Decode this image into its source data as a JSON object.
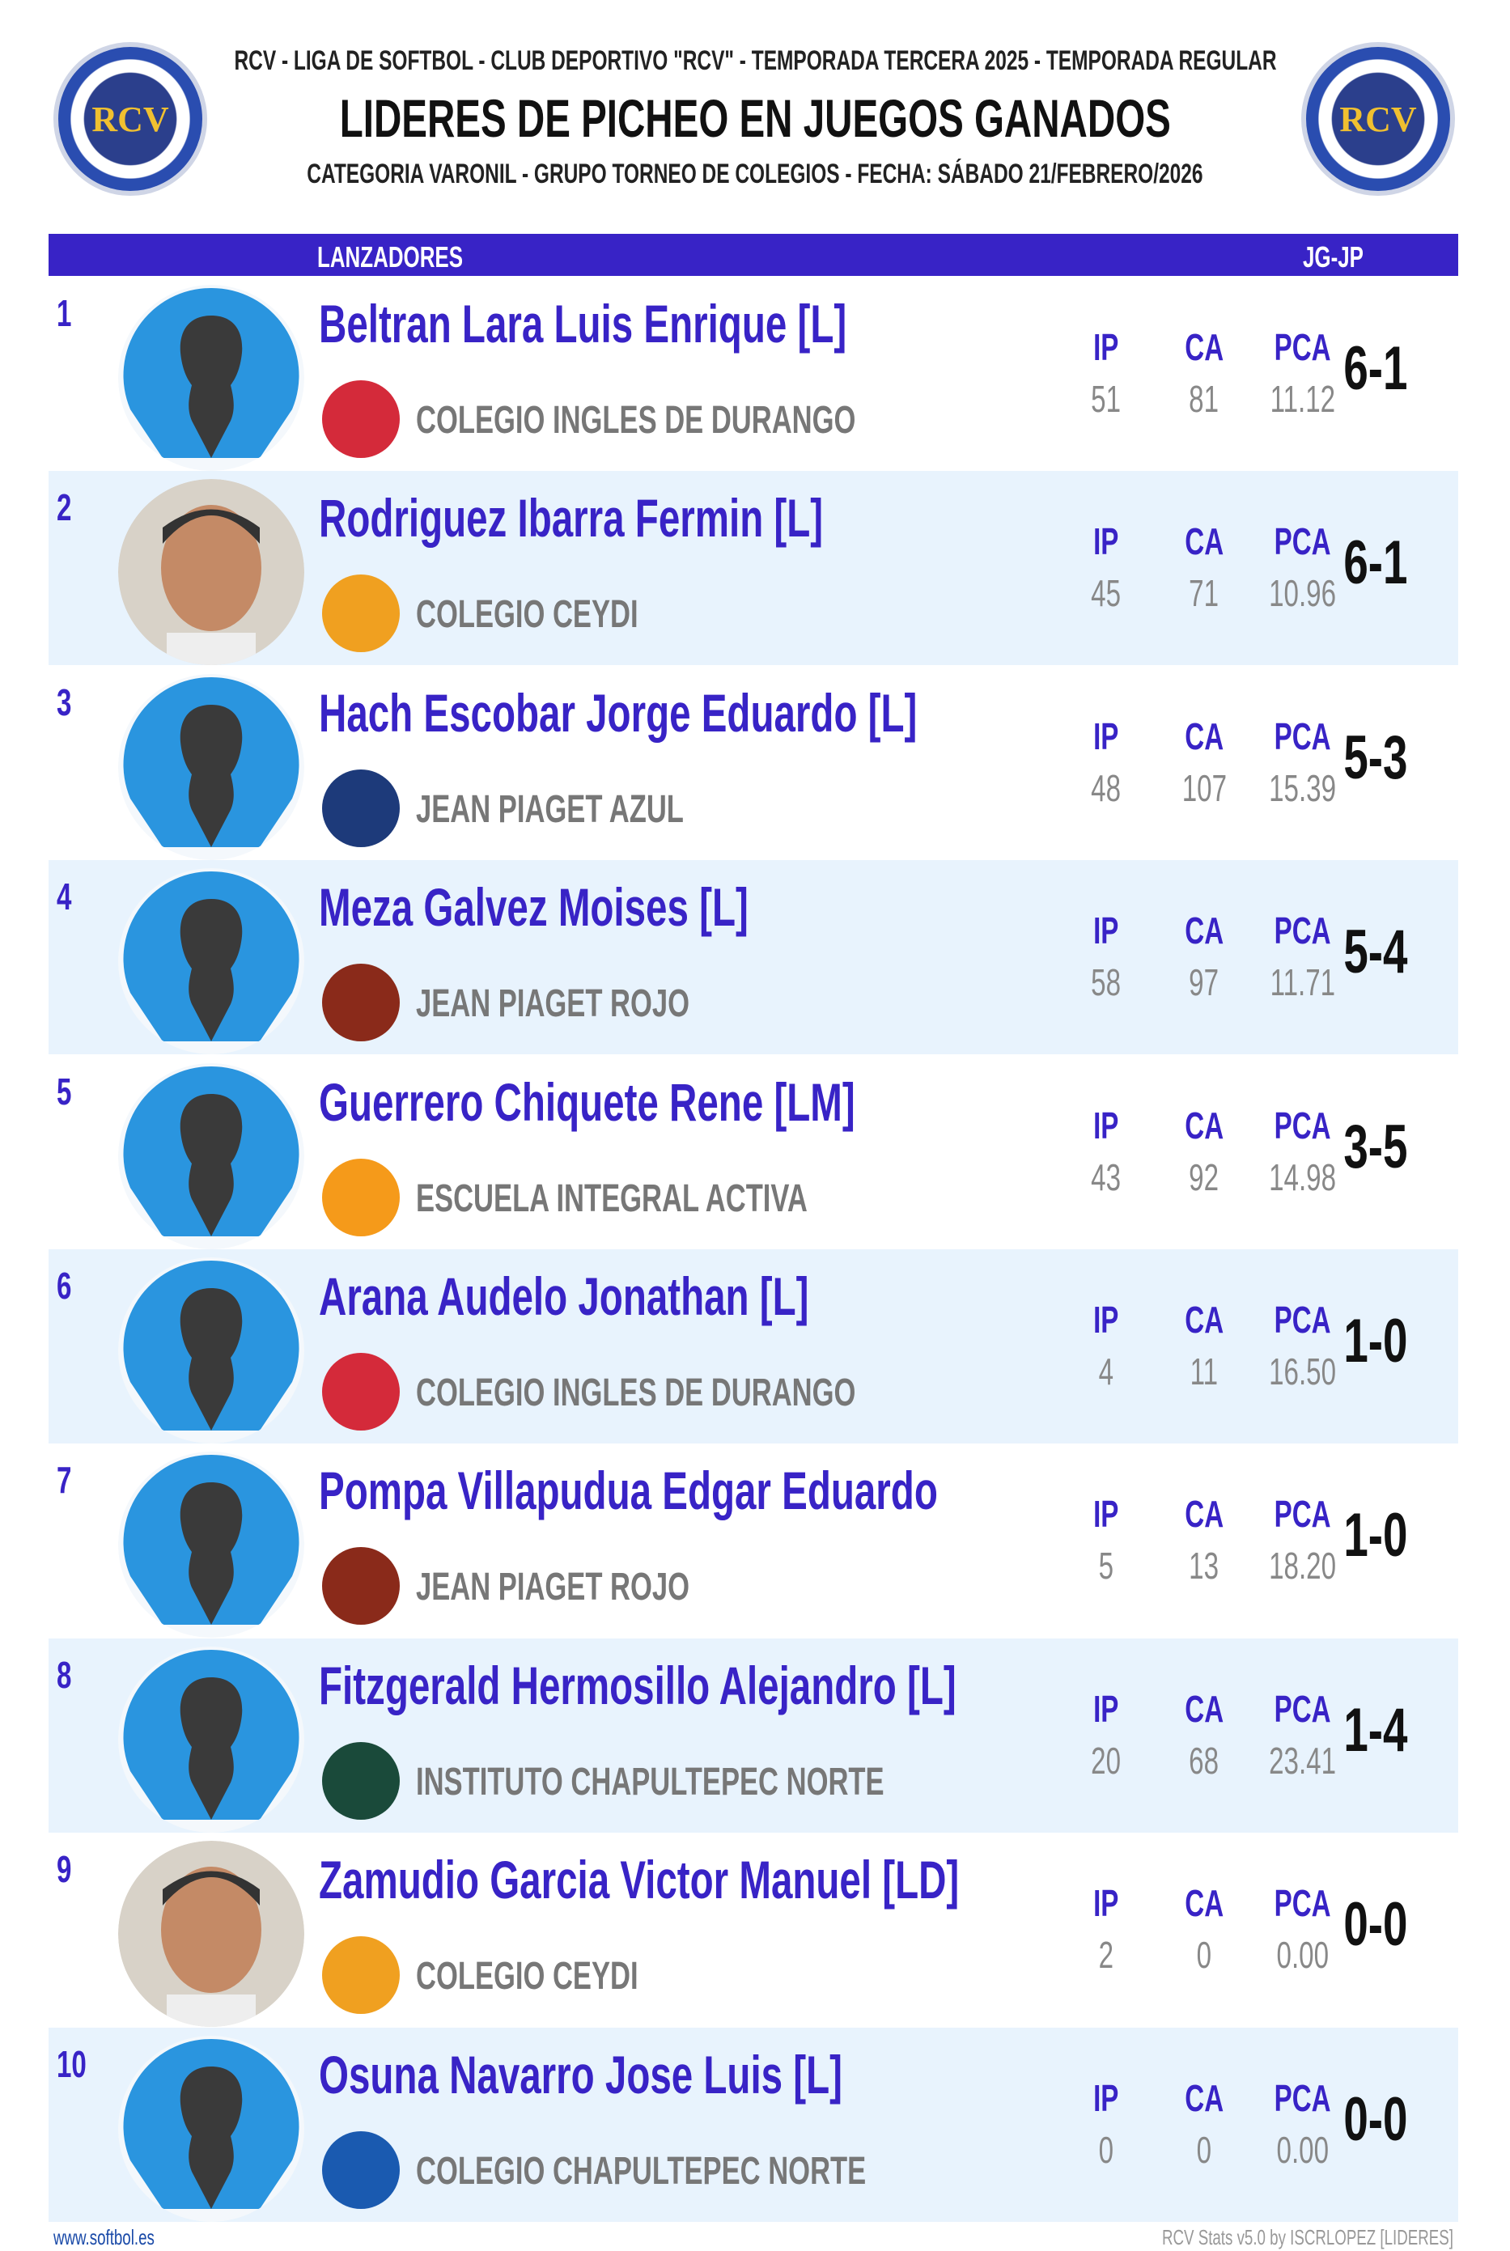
{
  "header": {
    "line1": "RCV - LIGA DE SOFTBOL - CLUB DEPORTIVO \"RCV\" - TEMPORADA TERCERA 2025 - TEMPORADA REGULAR",
    "title": "LIDERES DE PICHEO EN JUEGOS GANADOS",
    "line3": "CATEGORIA VARONIL - GRUPO TORNEO DE COLEGIOS - FECHA: SÁBADO 21/FEBRERO/2026",
    "logo_text": "RCV"
  },
  "columns": {
    "pitchers": "LANZADORES",
    "record": "JG-JP",
    "ip": "IP",
    "ca": "CA",
    "pca": "PCA"
  },
  "colors": {
    "accent": "#3823c6",
    "alt_row": "#e8f3fd"
  },
  "rows": [
    {
      "rank": "1",
      "name": "Beltran Lara Luis Enrique [L]",
      "team": "COLEGIO INGLES DE DURANGO",
      "ip": "51",
      "ca": "81",
      "pca": "11.12",
      "record": "6-1",
      "photo": false,
      "logo_color": "#d42a3a"
    },
    {
      "rank": "2",
      "name": "Rodriguez Ibarra Fermin [L]",
      "team": "COLEGIO CEYDI",
      "ip": "45",
      "ca": "71",
      "pca": "10.96",
      "record": "6-1",
      "photo": true,
      "logo_color": "#f0a020"
    },
    {
      "rank": "3",
      "name": "Hach Escobar Jorge Eduardo [L]",
      "team": "JEAN PIAGET AZUL",
      "ip": "48",
      "ca": "107",
      "pca": "15.39",
      "record": "5-3",
      "photo": false,
      "logo_color": "#1d3a7a"
    },
    {
      "rank": "4",
      "name": "Meza Galvez Moises [L]",
      "team": "JEAN PIAGET ROJO",
      "ip": "58",
      "ca": "97",
      "pca": "11.71",
      "record": "5-4",
      "photo": false,
      "logo_color": "#8a2a1a"
    },
    {
      "rank": "5",
      "name": "Guerrero Chiquete Rene [LM]",
      "team": "ESCUELA INTEGRAL ACTIVA",
      "ip": "43",
      "ca": "92",
      "pca": "14.98",
      "record": "3-5",
      "photo": false,
      "logo_color": "#f59a1a"
    },
    {
      "rank": "6",
      "name": "Arana Audelo Jonathan [L]",
      "team": "COLEGIO INGLES DE DURANGO",
      "ip": "4",
      "ca": "11",
      "pca": "16.50",
      "record": "1-0",
      "photo": false,
      "logo_color": "#d42a3a"
    },
    {
      "rank": "7",
      "name": "Pompa Villapudua Edgar Eduardo",
      "team": "JEAN PIAGET ROJO",
      "ip": "5",
      "ca": "13",
      "pca": "18.20",
      "record": "1-0",
      "photo": false,
      "logo_color": "#8a2a1a"
    },
    {
      "rank": "8",
      "name": "Fitzgerald Hermosillo Alejandro [L]",
      "team": "INSTITUTO CHAPULTEPEC NORTE",
      "ip": "20",
      "ca": "68",
      "pca": "23.41",
      "record": "1-4",
      "photo": false,
      "logo_color": "#1a4a3a"
    },
    {
      "rank": "9",
      "name": "Zamudio Garcia Victor Manuel [LD]",
      "team": "COLEGIO CEYDI",
      "ip": "2",
      "ca": "0",
      "pca": "0.00",
      "record": "0-0",
      "photo": true,
      "logo_color": "#f0a020"
    },
    {
      "rank": "10",
      "name": "Osuna Navarro Jose Luis [L]",
      "team": "COLEGIO CHAPULTEPEC NORTE",
      "ip": "0",
      "ca": "0",
      "pca": "0.00",
      "record": "0-0",
      "photo": false,
      "logo_color": "#1a5ab0"
    }
  ],
  "footer": {
    "left": "www.softbol.es",
    "right": "RCV  Stats  v5.0 by ISCRLOPEZ [LIDERES]"
  }
}
